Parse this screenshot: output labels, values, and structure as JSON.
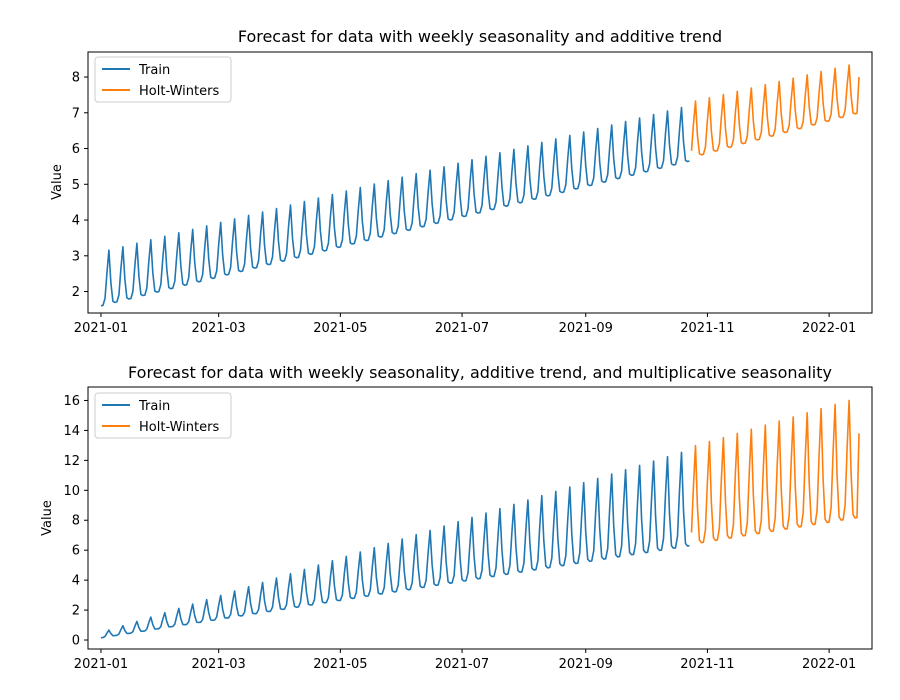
{
  "chart_data": [
    {
      "type": "line",
      "title": "Forecast for data with weekly seasonality and additive trend",
      "xlabel": "",
      "ylabel": "Value",
      "x_tick_labels": [
        "2021-01",
        "2021-03",
        "2021-05",
        "2021-07",
        "2021-09",
        "2021-11",
        "2022-01"
      ],
      "y_ticks": [
        2,
        3,
        4,
        5,
        6,
        7,
        8
      ],
      "ylim": [
        1.4,
        8.7
      ],
      "legend_position": "upper left",
      "series": [
        {
          "name": "Train",
          "color": "#1f77b4",
          "date_range": [
            "2021-01-01",
            "2021-10-23"
          ],
          "weekly_pattern": [
            1.6,
            1.6,
            1.8,
            2.6,
            3.1,
            2.2,
            1.65
          ],
          "weekly_step": 0.1,
          "peak_growth_per_week": 0.05,
          "base_start": 1.6,
          "base_end": 5.65,
          "peak_start": 3.1,
          "peak_end": 7.2
        },
        {
          "name": "Holt-Winters",
          "color": "#ff7f0e",
          "date_range": [
            "2021-10-24",
            "2022-01-16"
          ],
          "base_start": 5.75,
          "base_end": 7.0,
          "peak_start": 7.3,
          "peak_end": 8.4,
          "end_value": 8.0
        }
      ]
    },
    {
      "type": "line",
      "title": "Forecast for data with weekly seasonality, additive trend, and multiplicative seasonality",
      "xlabel": "",
      "ylabel": "Value",
      "x_tick_labels": [
        "2021-01",
        "2021-03",
        "2021-05",
        "2021-07",
        "2021-09",
        "2021-11",
        "2022-01"
      ],
      "y_ticks": [
        0,
        2,
        4,
        6,
        8,
        10,
        12,
        14,
        16
      ],
      "ylim": [
        -0.6,
        16.9
      ],
      "legend_position": "upper left",
      "series": [
        {
          "name": "Train",
          "color": "#1f77b4",
          "date_range": [
            "2021-01-01",
            "2021-10-23"
          ],
          "base_start": 0.15,
          "base_end": 6.3,
          "peak_start": 0.5,
          "peak_end": 12.7
        },
        {
          "name": "Holt-Winters",
          "color": "#ff7f0e",
          "date_range": [
            "2021-10-24",
            "2022-01-16"
          ],
          "base_start": 6.4,
          "base_end": 8.2,
          "peak_start": 12.9,
          "peak_end": 16.2,
          "end_value": 13.8
        }
      ]
    }
  ]
}
